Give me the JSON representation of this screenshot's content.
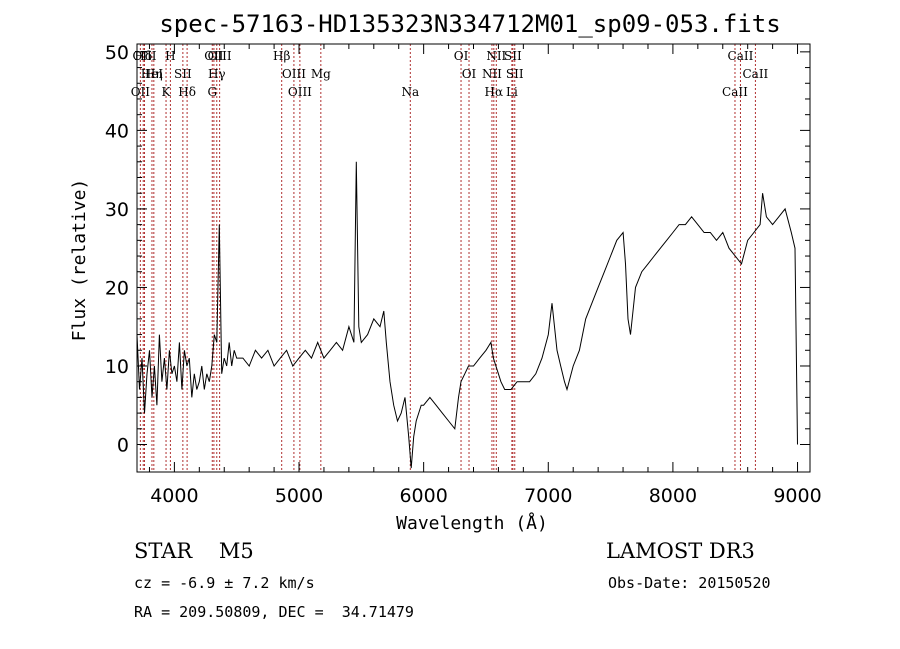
{
  "chart_data": {
    "type": "line",
    "title": "spec-57163-HD135323N334712M01_sp09-053.fits",
    "xlabel": "Wavelength (Å)",
    "ylabel": "Flux (relative)",
    "xlim": [
      3700,
      9100
    ],
    "ylim": [
      -3.5,
      51
    ],
    "xticks": [
      4000,
      5000,
      6000,
      7000,
      8000,
      9000
    ],
    "yticks": [
      0,
      10,
      20,
      30,
      40,
      50
    ],
    "grid": false,
    "line_color": "#000000",
    "marker_color": "#b03030",
    "series": [
      {
        "x": [
          3700,
          3720,
          3740,
          3760,
          3780,
          3800,
          3820,
          3840,
          3860,
          3880,
          3900,
          3920,
          3940,
          3960,
          3980,
          4000,
          4020,
          4040,
          4060,
          4080,
          4100,
          4120,
          4140,
          4160,
          4180,
          4200,
          4220,
          4240,
          4260,
          4280,
          4300,
          4320,
          4340,
          4360,
          4380,
          4400,
          4420,
          4440,
          4460,
          4480,
          4500,
          4550,
          4600,
          4650,
          4700,
          4750,
          4800,
          4850,
          4900,
          4950,
          5000,
          5050,
          5100,
          5150,
          5200,
          5250,
          5300,
          5350,
          5400,
          5440,
          5460,
          5480,
          5500,
          5550,
          5600,
          5650,
          5680,
          5700,
          5730,
          5760,
          5790,
          5820,
          5850,
          5880,
          5900,
          5920,
          5940,
          5960,
          5980,
          6000,
          6050,
          6100,
          6150,
          6200,
          6250,
          6280,
          6300,
          6330,
          6360,
          6400,
          6450,
          6500,
          6540,
          6560,
          6580,
          6600,
          6620,
          6650,
          6700,
          6750,
          6800,
          6850,
          6900,
          6950,
          7000,
          7030,
          7050,
          7070,
          7100,
          7130,
          7150,
          7200,
          7250,
          7300,
          7350,
          7400,
          7450,
          7500,
          7550,
          7600,
          7620,
          7640,
          7660,
          7680,
          7700,
          7750,
          7800,
          7850,
          7900,
          7950,
          8000,
          8050,
          8100,
          8150,
          8200,
          8250,
          8300,
          8350,
          8400,
          8450,
          8500,
          8550,
          8600,
          8650,
          8700,
          8720,
          8750,
          8800,
          8850,
          8900,
          8950,
          8980,
          9000
        ],
        "values": [
          14,
          7,
          11,
          4,
          9,
          12,
          6,
          10,
          5,
          14,
          8,
          11,
          7,
          12,
          9,
          10,
          8,
          13,
          7,
          12,
          10,
          11,
          6,
          9,
          7,
          8,
          10,
          7,
          9,
          8,
          10,
          14,
          13,
          28,
          9,
          11,
          10,
          13,
          10,
          12,
          11,
          11,
          10,
          12,
          11,
          12,
          10,
          11,
          12,
          10,
          11,
          12,
          11,
          13,
          11,
          12,
          13,
          12,
          15,
          13,
          36,
          15,
          13,
          14,
          16,
          15,
          17,
          13,
          8,
          5,
          3,
          4,
          6,
          1,
          -3,
          1,
          3,
          4,
          5,
          5,
          6,
          5,
          4,
          3,
          2,
          6,
          8,
          9,
          10,
          10,
          11,
          12,
          13,
          11,
          10,
          9,
          8,
          7,
          7,
          8,
          8,
          8,
          9,
          11,
          14,
          18,
          15,
          12,
          10,
          8,
          7,
          10,
          12,
          16,
          18,
          20,
          22,
          24,
          26,
          27,
          23,
          16,
          14,
          17,
          20,
          22,
          23,
          24,
          25,
          26,
          27,
          28,
          28,
          29,
          28,
          27,
          27,
          26,
          27,
          25,
          24,
          23,
          26,
          27,
          28,
          32,
          29,
          28,
          29,
          30,
          27,
          25,
          0
        ]
      }
    ],
    "lines": [
      {
        "label": "Hδ",
        "x": 3750
      },
      {
        "label": "HeI",
        "x": 3820
      },
      {
        "label": "OII",
        "x": 3727
      },
      {
        "label": "OIII",
        "x": 3760
      },
      {
        "label": "Hη",
        "x": 3835
      },
      {
        "label": "K",
        "x": 3933
      },
      {
        "label": "H",
        "x": 3968
      },
      {
        "label": "SII",
        "x": 4068
      },
      {
        "label": "Hδ",
        "x": 4102
      },
      {
        "label": "OII",
        "x": 4317
      },
      {
        "label": "Hγ",
        "x": 4340
      },
      {
        "label": "G",
        "x": 4304
      },
      {
        "label": "OIII",
        "x": 4363
      },
      {
        "label": "OIII",
        "x": 4959
      },
      {
        "label": "OIII",
        "x": 5007
      },
      {
        "label": "Hβ",
        "x": 4861
      },
      {
        "label": "Mg",
        "x": 5175
      },
      {
        "label": "Na",
        "x": 5893
      },
      {
        "label": "OI",
        "x": 6300
      },
      {
        "label": "OI",
        "x": 6364
      },
      {
        "label": "Hα",
        "x": 6563
      },
      {
        "label": "SII",
        "x": 6716
      },
      {
        "label": "NII",
        "x": 6548
      },
      {
        "label": "Li",
        "x": 6708
      },
      {
        "label": "NII",
        "x": 6583
      },
      {
        "label": "SII",
        "x": 6731
      },
      {
        "label": "CaII",
        "x": 8498
      },
      {
        "label": "CaII",
        "x": 8542
      },
      {
        "label": "CaII",
        "x": 8662
      }
    ]
  },
  "info": {
    "object": "STAR    M5",
    "survey": "LAMOST DR3",
    "cz": "cz = -6.9 ± 7.2 km/s",
    "obs_date": "Obs-Date: 20150520",
    "radec": "RA = 209.50809, DEC =  34.71479"
  }
}
